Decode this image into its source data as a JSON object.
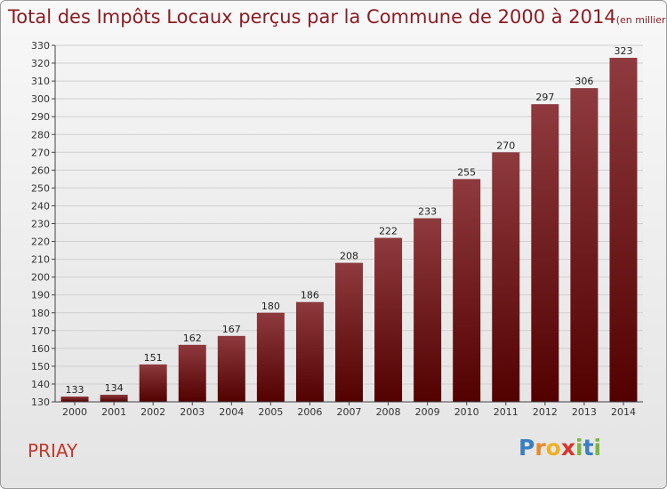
{
  "chart_data": {
    "type": "bar",
    "title": "Total des Impôts Locaux perçus par la Commune de 2000 à 2014",
    "unit_note": "(en milliers d'€)",
    "categories": [
      "2000",
      "2001",
      "2002",
      "2003",
      "2004",
      "2005",
      "2006",
      "2007",
      "2008",
      "2009",
      "2010",
      "2011",
      "2012",
      "2013",
      "2014"
    ],
    "values": [
      133,
      134,
      151,
      162,
      167,
      180,
      186,
      208,
      222,
      233,
      255,
      270,
      297,
      306,
      323
    ],
    "ylim": [
      130,
      330
    ],
    "y_ticks": [
      130,
      140,
      150,
      160,
      170,
      180,
      190,
      200,
      210,
      220,
      230,
      240,
      250,
      260,
      270,
      280,
      290,
      300,
      310,
      320,
      330
    ],
    "grid": true,
    "bar_color_top": "#8e3a3e",
    "bar_color_bottom": "#520000"
  },
  "commune": "PRIAY",
  "logo_text": "Proxiti"
}
